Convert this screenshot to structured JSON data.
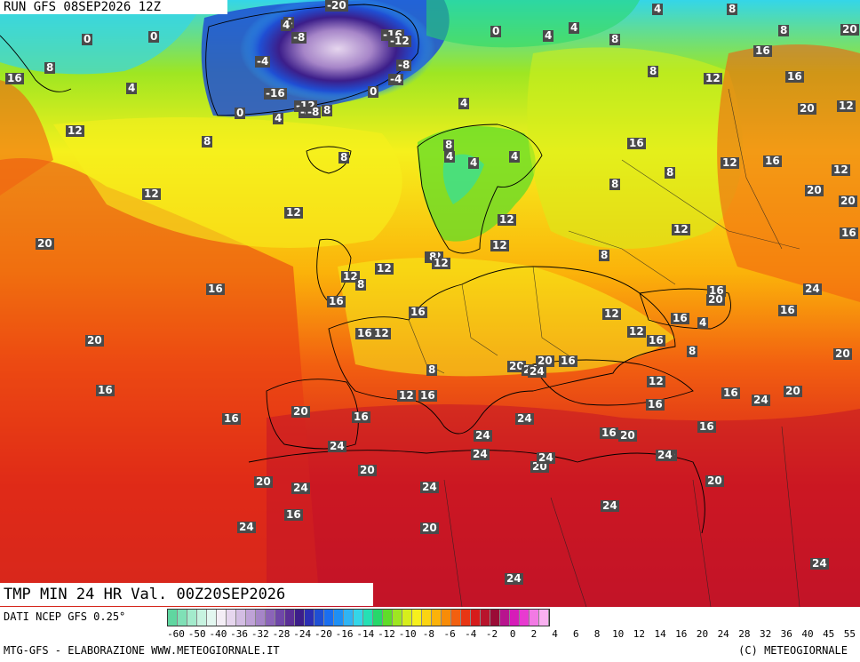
{
  "header": {
    "run_label": "RUN GFS 08SEP2026 12Z"
  },
  "footer": {
    "valid_label": "TMP MIN 24 HR Val. 00Z20SEP2026",
    "data_source": "DATI NCEP GFS 0.25°",
    "credit_left": "MTG-GFS - ELABORAZIONE WWW.METEOGIORNALE.IT",
    "credit_right": "(C) METEOGIORNALE"
  },
  "legend": {
    "ticks": [
      "-60",
      "-50",
      "-40",
      "-36",
      "-32",
      "-28",
      "-24",
      "-20",
      "-16",
      "-14",
      "-12",
      "-10",
      "-8",
      "-6",
      "-4",
      "-2",
      "0",
      "2",
      "4",
      "6",
      "8",
      "10",
      "12",
      "14",
      "16",
      "20",
      "24",
      "28",
      "32",
      "36",
      "40",
      "45",
      "55"
    ],
    "colors": [
      "#5fd6a0",
      "#7fe0b6",
      "#a3ebcc",
      "#c7f3e0",
      "#e3f7f0",
      "#f4eef6",
      "#e6d6ee",
      "#d3bde3",
      "#bfa2d7",
      "#a685c8",
      "#8b64b8",
      "#6f47a8",
      "#5a2f96",
      "#3c1e8a",
      "#2b2fb4",
      "#1f4fd4",
      "#1a6ef0",
      "#1e8ff5",
      "#2fb4f4",
      "#34d6e8",
      "#25e0b4",
      "#26d86a",
      "#5fdc2a",
      "#9ee622",
      "#d6ee1c",
      "#f6f01c",
      "#fbd412",
      "#fbb20a",
      "#f88c08",
      "#f26010",
      "#e83614",
      "#d61c1c",
      "#b8142c",
      "#9a0c36",
      "#b8148e",
      "#d61cb8",
      "#e83ad0",
      "#f27ae4",
      "#f9b0f0"
    ]
  },
  "map": {
    "labels": [
      {
        "t": "-20"
      },
      {
        "t": "4"
      },
      {
        "t": "8"
      },
      {
        "t": "4"
      },
      {
        "t": "20"
      },
      {
        "t": "0"
      },
      {
        "t": "0"
      },
      {
        "t": "-8"
      },
      {
        "t": "4"
      },
      {
        "t": "-16"
      },
      {
        "t": "-12"
      },
      {
        "t": "0"
      },
      {
        "t": "4"
      },
      {
        "t": "4"
      },
      {
        "t": "8"
      },
      {
        "t": "8"
      },
      {
        "t": "16"
      },
      {
        "t": "8"
      },
      {
        "t": "16"
      },
      {
        "t": "4"
      },
      {
        "t": "-4"
      },
      {
        "t": "-8"
      },
      {
        "t": "-4"
      },
      {
        "t": "12"
      },
      {
        "t": "16"
      },
      {
        "t": "8"
      },
      {
        "t": "-16"
      },
      {
        "t": "-12"
      },
      {
        "t": "0"
      },
      {
        "t": "4"
      },
      {
        "t": "8"
      },
      {
        "t": "0"
      },
      {
        "t": "4"
      },
      {
        "t": "-4"
      },
      {
        "t": "-8"
      },
      {
        "t": "20"
      },
      {
        "t": "12"
      },
      {
        "t": "12"
      },
      {
        "t": "8"
      },
      {
        "t": "8"
      },
      {
        "t": "4"
      },
      {
        "t": "16"
      },
      {
        "t": "4"
      },
      {
        "t": "4"
      },
      {
        "t": "12"
      },
      {
        "t": "16"
      },
      {
        "t": "8"
      },
      {
        "t": "12"
      },
      {
        "t": "8"
      },
      {
        "t": "20"
      },
      {
        "t": "12"
      },
      {
        "t": "12"
      },
      {
        "t": "8"
      },
      {
        "t": "12"
      },
      {
        "t": "20"
      },
      {
        "t": "12"
      },
      {
        "t": "12"
      },
      {
        "t": "8"
      },
      {
        "t": "16"
      },
      {
        "t": "12"
      },
      {
        "t": "8"
      },
      {
        "t": "20"
      },
      {
        "t": "16"
      },
      {
        "t": "16"
      },
      {
        "t": "12"
      },
      {
        "t": "12"
      },
      {
        "t": "16"
      },
      {
        "t": "20"
      },
      {
        "t": "12"
      },
      {
        "t": "16"
      },
      {
        "t": "8"
      },
      {
        "t": "4"
      },
      {
        "t": "16"
      },
      {
        "t": "24"
      },
      {
        "t": "16"
      },
      {
        "t": "12"
      },
      {
        "t": "12"
      },
      {
        "t": "16"
      },
      {
        "t": "8"
      },
      {
        "t": "8"
      },
      {
        "t": "12"
      },
      {
        "t": "16"
      },
      {
        "t": "12"
      },
      {
        "t": "20"
      },
      {
        "t": "20"
      },
      {
        "t": "16"
      },
      {
        "t": "20"
      },
      {
        "t": "20"
      },
      {
        "t": "24"
      },
      {
        "t": "16"
      },
      {
        "t": "24"
      },
      {
        "t": "12"
      },
      {
        "t": "16"
      },
      {
        "t": "24"
      },
      {
        "t": "20"
      },
      {
        "t": "16"
      },
      {
        "t": "16"
      },
      {
        "t": "20"
      },
      {
        "t": "16"
      },
      {
        "t": "24"
      },
      {
        "t": "16"
      },
      {
        "t": "24"
      },
      {
        "t": "16"
      },
      {
        "t": "20"
      },
      {
        "t": "16"
      },
      {
        "t": "24"
      },
      {
        "t": "20"
      },
      {
        "t": "24"
      },
      {
        "t": "20"
      },
      {
        "t": "20"
      },
      {
        "t": "20"
      },
      {
        "t": "24"
      },
      {
        "t": "20"
      },
      {
        "t": "24"
      },
      {
        "t": "24"
      },
      {
        "t": "24"
      },
      {
        "t": "16"
      },
      {
        "t": "24"
      },
      {
        "t": "20"
      },
      {
        "t": "24"
      },
      {
        "t": "24"
      },
      {
        "t": "24"
      },
      {
        "t": "24"
      }
    ]
  }
}
